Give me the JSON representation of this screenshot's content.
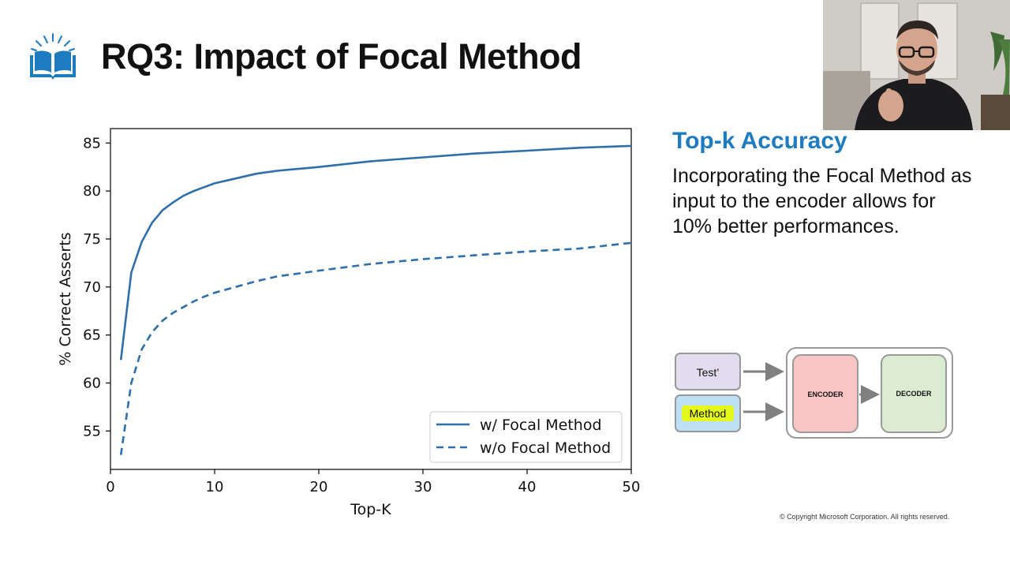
{
  "slide": {
    "title": "RQ3: Impact of Focal Method",
    "logo_icon": "open-book-icon",
    "side_heading": "Top-k Accuracy",
    "side_body": "Incorporating the Focal Method as input to the encoder allows for 10% better performances.",
    "copyright": "© Copyright Microsoft Corporation. All rights reserved."
  },
  "diagram": {
    "test_label": "Test’",
    "method_label": "Method",
    "encoder_label": "ENCODER",
    "decoder_label": "DECODER",
    "colors": {
      "test": "#e2dcef",
      "method": "#bde0f5",
      "highlight": "#e4f81c",
      "encoder": "#f9c5c4",
      "decoder": "#dbecd2"
    }
  },
  "chart_data": {
    "type": "line",
    "title": "",
    "xlabel": "Top-K",
    "ylabel": "% Correct Asserts",
    "xlim": [
      0,
      50
    ],
    "ylim": [
      51,
      86.5
    ],
    "xticks": [
      0,
      10,
      20,
      30,
      40,
      50
    ],
    "yticks": [
      55,
      60,
      65,
      70,
      75,
      80,
      85
    ],
    "grid": false,
    "legend": "lower-right",
    "x": [
      1,
      2,
      3,
      4,
      5,
      6,
      7,
      8,
      9,
      10,
      12,
      14,
      16,
      18,
      20,
      25,
      30,
      35,
      40,
      45,
      50
    ],
    "series": [
      {
        "name": "w/ Focal Method",
        "style": "solid",
        "color": "#2e6fab",
        "values": [
          62.4,
          71.5,
          74.7,
          76.7,
          78.0,
          78.8,
          79.5,
          80.0,
          80.4,
          80.8,
          81.3,
          81.8,
          82.1,
          82.3,
          82.5,
          83.1,
          83.5,
          83.9,
          84.2,
          84.5,
          84.7
        ]
      },
      {
        "name": "w/o Focal Method",
        "style": "dashed",
        "color": "#2e6fab",
        "values": [
          52.5,
          60.0,
          63.5,
          65.3,
          66.5,
          67.3,
          67.9,
          68.5,
          69.0,
          69.4,
          70.0,
          70.6,
          71.1,
          71.4,
          71.7,
          72.4,
          72.9,
          73.3,
          73.7,
          74.0,
          74.6
        ]
      }
    ]
  },
  "webcam": {
    "description_icon": "presenter-video-icon"
  }
}
